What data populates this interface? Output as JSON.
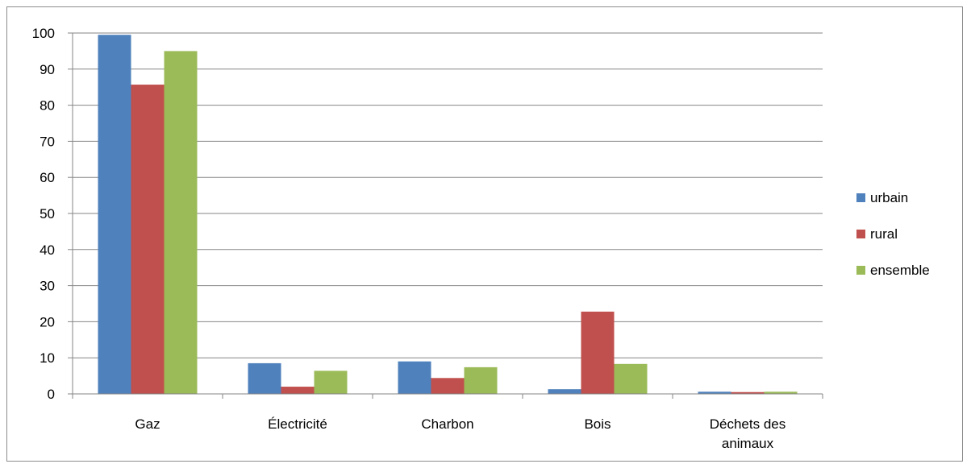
{
  "chart_data": {
    "type": "bar",
    "categories": [
      "Gaz",
      "Électricité",
      "Charbon",
      "Bois",
      "Déchets des animaux"
    ],
    "category_lines": [
      [
        "Gaz"
      ],
      [
        "Électricité"
      ],
      [
        "Charbon"
      ],
      [
        "Bois"
      ],
      [
        "Déchets des",
        "animaux"
      ]
    ],
    "series": [
      {
        "name": "urbain",
        "values": [
          99.5,
          8.5,
          9.0,
          1.3,
          0.6
        ],
        "color": "#4f81bd"
      },
      {
        "name": "rural",
        "values": [
          85.7,
          2.0,
          4.4,
          22.8,
          0.5
        ],
        "color": "#c0504d"
      },
      {
        "name": "ensemble",
        "values": [
          95.0,
          6.4,
          7.4,
          8.3,
          0.6
        ],
        "color": "#9bbb59"
      }
    ],
    "ylim": [
      0,
      100
    ],
    "yticks": [
      0,
      10,
      20,
      30,
      40,
      50,
      60,
      70,
      80,
      90,
      100
    ],
    "grid": true,
    "legend_position": "right"
  }
}
